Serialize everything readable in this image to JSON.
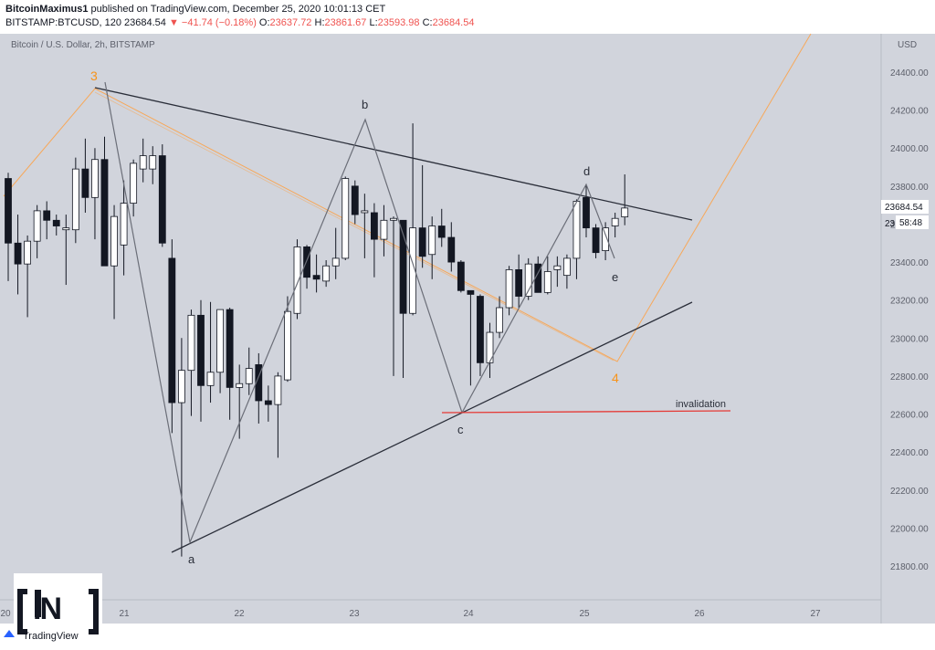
{
  "header": {
    "author": "BitcoinMaximus1",
    "published": "published on TradingView.com, December 25, 2020 10:01:13 CET",
    "symbol": "BITSTAMP:BTCUSD, 120",
    "last": "23684.54",
    "change_arrow": "▼",
    "change": "−41.74 (−0.18%)",
    "o_label": "O:",
    "o": "23637.72",
    "h_label": "H:",
    "h": "23861.67",
    "l_label": "L:",
    "l": "23593.98",
    "c_label": "C:",
    "c": "23684.54"
  },
  "chart_title": "Bitcoin / U.S. Dollar, 2h, BITSTAMP",
  "currency": "USD",
  "price_tag": "23684.54",
  "price_tag_partial": "23",
  "countdown": "58:48",
  "branding": "TradingView",
  "logo_text": "IN",
  "colors": {
    "background": "#d1d4dc",
    "bullish": "#ffffff",
    "bearish": "#131722",
    "wick": "#131722",
    "trendline": "#2a2e39",
    "wave": "#6b6e78",
    "orange": "#f7931a",
    "invalidation": "#e53935"
  },
  "chart_data": {
    "type": "candlestick",
    "title": "Bitcoin / U.S. Dollar, 2h, BITSTAMP",
    "x_ticks": [
      "20",
      "21",
      "22",
      "23",
      "24",
      "25",
      "26",
      "27"
    ],
    "y_ticks": [
      "24400.00",
      "24200.00",
      "24000.00",
      "23800.00",
      "23600.00",
      "23400.00",
      "23200.00",
      "23000.00",
      "22800.00",
      "22600.00",
      "22400.00",
      "22200.00",
      "22000.00",
      "21800.00"
    ],
    "ylim": [
      21600,
      24700
    ],
    "grid": false,
    "candles": [
      {
        "o": 23840,
        "h": 23870,
        "l": 23300,
        "c": 23500
      },
      {
        "o": 23500,
        "h": 23650,
        "l": 23230,
        "c": 23390
      },
      {
        "o": 23390,
        "h": 23540,
        "l": 23110,
        "c": 23510
      },
      {
        "o": 23510,
        "h": 23700,
        "l": 23420,
        "c": 23670
      },
      {
        "o": 23670,
        "h": 23720,
        "l": 23520,
        "c": 23620
      },
      {
        "o": 23620,
        "h": 23650,
        "l": 23540,
        "c": 23590
      },
      {
        "o": 23570,
        "h": 23650,
        "l": 23280,
        "c": 23580
      },
      {
        "o": 23570,
        "h": 23950,
        "l": 23500,
        "c": 23890
      },
      {
        "o": 23890,
        "h": 24050,
        "l": 23660,
        "c": 23740
      },
      {
        "o": 23740,
        "h": 24000,
        "l": 23520,
        "c": 23940
      },
      {
        "o": 23940,
        "h": 24060,
        "l": 23390,
        "c": 23380
      },
      {
        "o": 23380,
        "h": 23700,
        "l": 23100,
        "c": 23640
      },
      {
        "o": 23490,
        "h": 23830,
        "l": 23330,
        "c": 23710
      },
      {
        "o": 23710,
        "h": 23940,
        "l": 23640,
        "c": 23920
      },
      {
        "o": 23890,
        "h": 24050,
        "l": 23820,
        "c": 23960
      },
      {
        "o": 23890,
        "h": 24010,
        "l": 23810,
        "c": 23960
      },
      {
        "o": 23960,
        "h": 24020,
        "l": 23480,
        "c": 23500
      },
      {
        "o": 23420,
        "h": 23520,
        "l": 22500,
        "c": 22660
      },
      {
        "o": 22660,
        "h": 23000,
        "l": 21850,
        "c": 22830
      },
      {
        "o": 22830,
        "h": 23150,
        "l": 22590,
        "c": 23120
      },
      {
        "o": 23120,
        "h": 23200,
        "l": 22560,
        "c": 22750
      },
      {
        "o": 22750,
        "h": 23190,
        "l": 22660,
        "c": 22820
      },
      {
        "o": 22820,
        "h": 23150,
        "l": 22710,
        "c": 23150
      },
      {
        "o": 23150,
        "h": 23160,
        "l": 22570,
        "c": 22740
      },
      {
        "o": 22740,
        "h": 22860,
        "l": 22470,
        "c": 22760
      },
      {
        "o": 22760,
        "h": 22950,
        "l": 22700,
        "c": 22840
      },
      {
        "o": 22860,
        "h": 22920,
        "l": 22550,
        "c": 22670
      },
      {
        "o": 22670,
        "h": 22750,
        "l": 22560,
        "c": 22650
      },
      {
        "o": 22650,
        "h": 22820,
        "l": 22370,
        "c": 22800
      },
      {
        "o": 22780,
        "h": 23220,
        "l": 22770,
        "c": 23140
      },
      {
        "o": 23130,
        "h": 23520,
        "l": 23100,
        "c": 23480
      },
      {
        "o": 23480,
        "h": 23490,
        "l": 23260,
        "c": 23320
      },
      {
        "o": 23330,
        "h": 23440,
        "l": 23240,
        "c": 23310
      },
      {
        "o": 23300,
        "h": 23410,
        "l": 23270,
        "c": 23380
      },
      {
        "o": 23380,
        "h": 23580,
        "l": 23310,
        "c": 23420
      },
      {
        "o": 23420,
        "h": 23850,
        "l": 23410,
        "c": 23840
      },
      {
        "o": 23800,
        "h": 23830,
        "l": 23600,
        "c": 23650
      },
      {
        "o": 23660,
        "h": 23760,
        "l": 23420,
        "c": 23670
      },
      {
        "o": 23660,
        "h": 23710,
        "l": 23320,
        "c": 23520
      },
      {
        "o": 23520,
        "h": 23700,
        "l": 23430,
        "c": 23620
      },
      {
        "o": 23620,
        "h": 23640,
        "l": 22800,
        "c": 23630
      },
      {
        "o": 23620,
        "h": 23620,
        "l": 22790,
        "c": 23130
      },
      {
        "o": 23130,
        "h": 24130,
        "l": 23120,
        "c": 23580
      },
      {
        "o": 23580,
        "h": 23910,
        "l": 23370,
        "c": 23430
      },
      {
        "o": 23440,
        "h": 23640,
        "l": 23310,
        "c": 23590
      },
      {
        "o": 23590,
        "h": 23680,
        "l": 23480,
        "c": 23530
      },
      {
        "o": 23530,
        "h": 23610,
        "l": 23350,
        "c": 23400
      },
      {
        "o": 23400,
        "h": 23410,
        "l": 23240,
        "c": 23250
      },
      {
        "o": 23250,
        "h": 23250,
        "l": 22750,
        "c": 23230
      },
      {
        "o": 23220,
        "h": 23230,
        "l": 22800,
        "c": 22870
      },
      {
        "o": 22870,
        "h": 23080,
        "l": 22790,
        "c": 23030
      },
      {
        "o": 23030,
        "h": 23220,
        "l": 23000,
        "c": 23160
      },
      {
        "o": 23160,
        "h": 23380,
        "l": 23120,
        "c": 23360
      },
      {
        "o": 23360,
        "h": 23440,
        "l": 23160,
        "c": 23220
      },
      {
        "o": 23220,
        "h": 23420,
        "l": 23200,
        "c": 23390
      },
      {
        "o": 23390,
        "h": 23430,
        "l": 23250,
        "c": 23240
      },
      {
        "o": 23240,
        "h": 23430,
        "l": 23230,
        "c": 23350
      },
      {
        "o": 23360,
        "h": 23430,
        "l": 23270,
        "c": 23380
      },
      {
        "o": 23330,
        "h": 23440,
        "l": 23260,
        "c": 23420
      },
      {
        "o": 23420,
        "h": 23730,
        "l": 23310,
        "c": 23720
      },
      {
        "o": 23740,
        "h": 23810,
        "l": 23530,
        "c": 23580
      },
      {
        "o": 23580,
        "h": 23600,
        "l": 23420,
        "c": 23450
      },
      {
        "o": 23460,
        "h": 23610,
        "l": 23410,
        "c": 23580
      },
      {
        "o": 23590,
        "h": 23660,
        "l": 23530,
        "c": 23630
      },
      {
        "o": 23637.72,
        "h": 23861.67,
        "l": 23593.98,
        "c": 23684.54
      }
    ],
    "annotations": [
      {
        "label": "3",
        "color": "orange"
      },
      {
        "label": "a"
      },
      {
        "label": "b"
      },
      {
        "label": "c"
      },
      {
        "label": "d"
      },
      {
        "label": "e"
      },
      {
        "label": "4",
        "color": "orange"
      },
      {
        "label": "invalidation",
        "price": 22615
      }
    ]
  }
}
